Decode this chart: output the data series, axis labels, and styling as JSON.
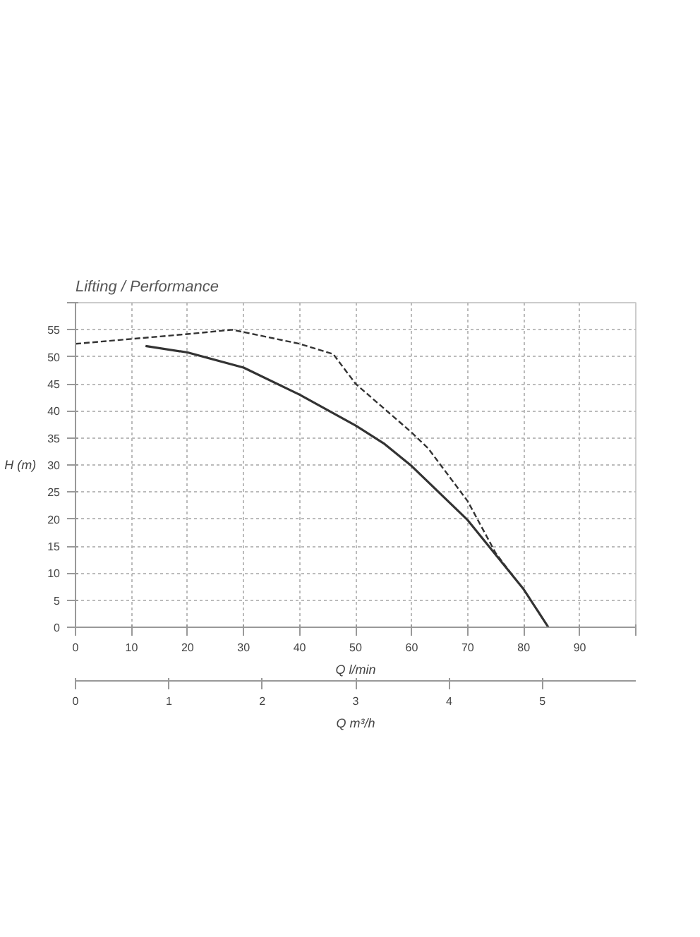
{
  "chart_data": {
    "type": "line",
    "title": "Lifting / Performance",
    "ylabel": "H (m)",
    "xlabel": "Q l/min",
    "x2label": "Q m³/h",
    "xlim": [
      0,
      100
    ],
    "xticks": [
      0,
      10,
      20,
      30,
      40,
      50,
      60,
      70,
      80,
      90,
      {
        "value": 100,
        "label": null
      }
    ],
    "x2lim": [
      0,
      6
    ],
    "x2ticks": [
      0,
      1,
      2,
      3,
      4,
      5
    ],
    "ylim": [
      0,
      60
    ],
    "yticks": [
      0,
      5,
      10,
      15,
      20,
      25,
      30,
      35,
      40,
      45,
      50,
      55,
      {
        "value": 60,
        "label": null
      }
    ],
    "grid": true,
    "marker": "none",
    "series": [
      {
        "color": "#333333",
        "line_style": "solid",
        "x": [
          12.5,
          20,
          30,
          40,
          50,
          55,
          60,
          70,
          80,
          84.4
        ],
        "values": [
          52,
          50.8,
          48,
          43,
          37.3,
          34,
          29.8,
          19.8,
          7,
          0
        ]
      },
      {
        "color": "#333333",
        "line_style": "dashed",
        "x": [
          0,
          10,
          20,
          28,
          40,
          46,
          50,
          60,
          63,
          70,
          75,
          78
        ],
        "values": [
          52.4,
          53.3,
          54.2,
          55,
          52.4,
          50.5,
          45,
          36,
          33,
          23.3,
          13.7,
          9.6
        ]
      }
    ]
  }
}
